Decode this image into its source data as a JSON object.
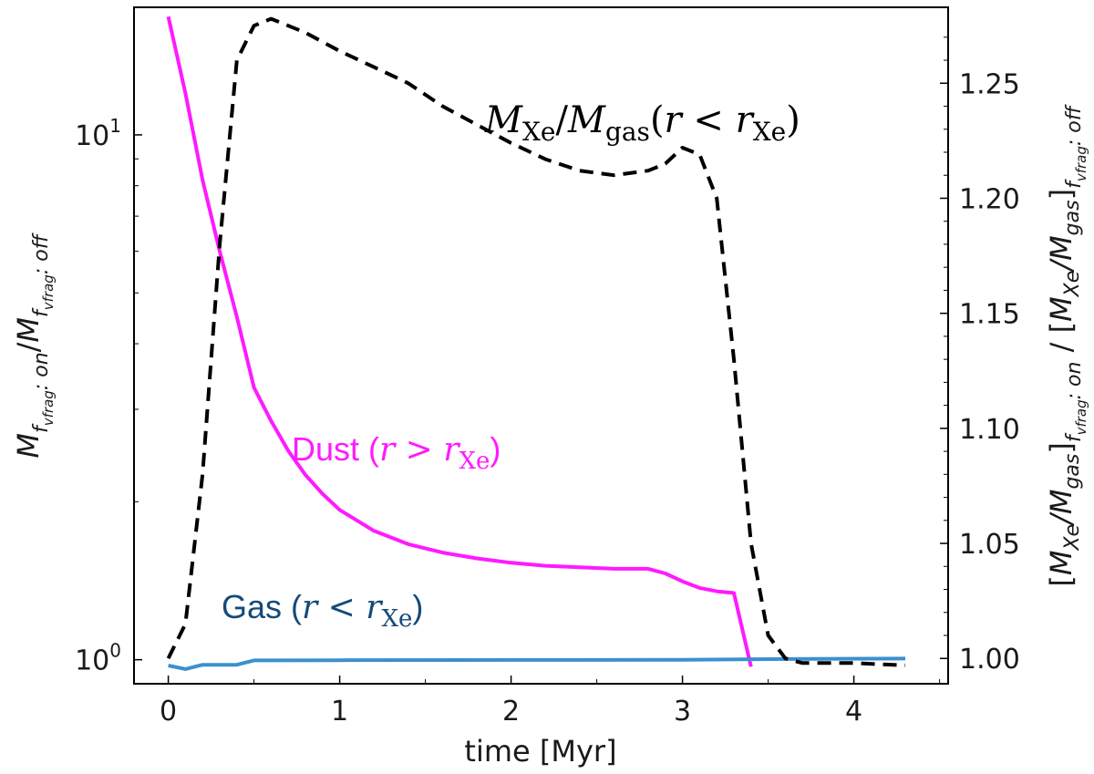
{
  "chart_data": {
    "type": "line",
    "xlabel": "time [Myr]",
    "x_ticks": [
      "0",
      "1",
      "2",
      "3",
      "4"
    ],
    "xlim": [
      -0.2,
      4.55
    ],
    "left_axis": {
      "scale": "log",
      "ylim": [
        0.9,
        17.5
      ],
      "ticks": [
        {
          "value": 1,
          "base": "10",
          "exp": "0"
        },
        {
          "value": 10,
          "base": "10",
          "exp": "1"
        }
      ],
      "label_parts": {
        "M1": "M",
        "f1": "f",
        "sub1": "vfrag",
        "state1": ": on",
        "slash": "/",
        "M2": "M",
        "f2": "f",
        "sub2": "vfrag",
        "state2": ": off"
      }
    },
    "right_axis": {
      "scale": "linear",
      "ylim": [
        0.989,
        1.283
      ],
      "ticks": [
        "1.00",
        "1.05",
        "1.10",
        "1.15",
        "1.20",
        "1.25"
      ],
      "label_parts": {
        "open1": "[",
        "ratio1": "M",
        "ratio1_sub": "Xe",
        "ratio1_mid": "/M",
        "ratio1_sub2": "gas",
        "close1": "]",
        "f1": "f",
        "sub1": "vfrag",
        "state1": ": on",
        "divider": " / ",
        "open2": "[",
        "ratio2": "M",
        "ratio2_sub": "Xe",
        "ratio2_mid": "/M",
        "ratio2_sub2": "gas",
        "close2": "]",
        "f2": "f",
        "sub2": "vfrag",
        "state2": ": off"
      }
    },
    "series": [
      {
        "name_parts": {
          "text": "Dust (",
          "var": "r",
          "op": " > ",
          "var2": "r",
          "sub": "Xe",
          "close": ")"
        },
        "color": "#ff1aff",
        "axis": "left",
        "style": "solid",
        "points": [
          [
            0,
            16.8
          ],
          [
            0.1,
            12.0
          ],
          [
            0.2,
            8.2
          ],
          [
            0.3,
            6.0
          ],
          [
            0.4,
            4.5
          ],
          [
            0.5,
            3.3
          ],
          [
            0.6,
            2.85
          ],
          [
            0.7,
            2.5
          ],
          [
            0.8,
            2.25
          ],
          [
            0.9,
            2.07
          ],
          [
            1.0,
            1.93
          ],
          [
            1.2,
            1.76
          ],
          [
            1.4,
            1.66
          ],
          [
            1.6,
            1.6
          ],
          [
            1.8,
            1.56
          ],
          [
            2.0,
            1.53
          ],
          [
            2.2,
            1.51
          ],
          [
            2.4,
            1.5
          ],
          [
            2.6,
            1.49
          ],
          [
            2.8,
            1.49
          ],
          [
            2.9,
            1.46
          ],
          [
            3.0,
            1.41
          ],
          [
            3.1,
            1.37
          ],
          [
            3.2,
            1.35
          ],
          [
            3.3,
            1.34
          ],
          [
            3.4,
            0.97
          ]
        ]
      },
      {
        "name_parts": {
          "text": "Gas (",
          "var": "r",
          "op": " < ",
          "var2": "r",
          "sub": "Xe",
          "close": ")"
        },
        "color": "#3a90d0",
        "label_color": "#154a7a",
        "axis": "left",
        "style": "solid",
        "points": [
          [
            0,
            0.975
          ],
          [
            0.1,
            0.96
          ],
          [
            0.2,
            0.978
          ],
          [
            0.4,
            0.978
          ],
          [
            0.5,
            0.997
          ],
          [
            1.0,
            0.998
          ],
          [
            2.0,
            0.999
          ],
          [
            3.0,
            1.0
          ],
          [
            3.6,
            1.003
          ],
          [
            4.3,
            1.005
          ]
        ]
      },
      {
        "name_parts": {
          "M": "M",
          "sub1": "Xe",
          "slash": "/",
          "M2": "M",
          "sub2": "gas",
          "open": "(",
          "var": "r",
          "op": " < ",
          "var2": "r",
          "sub3": "Xe",
          "close": ")"
        },
        "color": "#000000",
        "axis": "right",
        "style": "dashed",
        "points": [
          [
            0,
            1.0
          ],
          [
            0.1,
            1.015
          ],
          [
            0.2,
            1.08
          ],
          [
            0.3,
            1.18
          ],
          [
            0.4,
            1.26
          ],
          [
            0.5,
            1.275
          ],
          [
            0.6,
            1.278
          ],
          [
            0.8,
            1.272
          ],
          [
            1.0,
            1.264
          ],
          [
            1.2,
            1.257
          ],
          [
            1.4,
            1.25
          ],
          [
            1.6,
            1.24
          ],
          [
            1.8,
            1.232
          ],
          [
            2.0,
            1.224
          ],
          [
            2.2,
            1.217
          ],
          [
            2.4,
            1.212
          ],
          [
            2.6,
            1.21
          ],
          [
            2.8,
            1.212
          ],
          [
            2.9,
            1.215
          ],
          [
            3.0,
            1.222
          ],
          [
            3.1,
            1.219
          ],
          [
            3.2,
            1.2
          ],
          [
            3.3,
            1.13
          ],
          [
            3.4,
            1.05
          ],
          [
            3.5,
            1.01
          ],
          [
            3.6,
            1.0
          ],
          [
            3.7,
            0.998
          ],
          [
            4.0,
            0.998
          ],
          [
            4.3,
            0.997
          ]
        ]
      }
    ],
    "grid": false,
    "legend": "inline labels"
  }
}
